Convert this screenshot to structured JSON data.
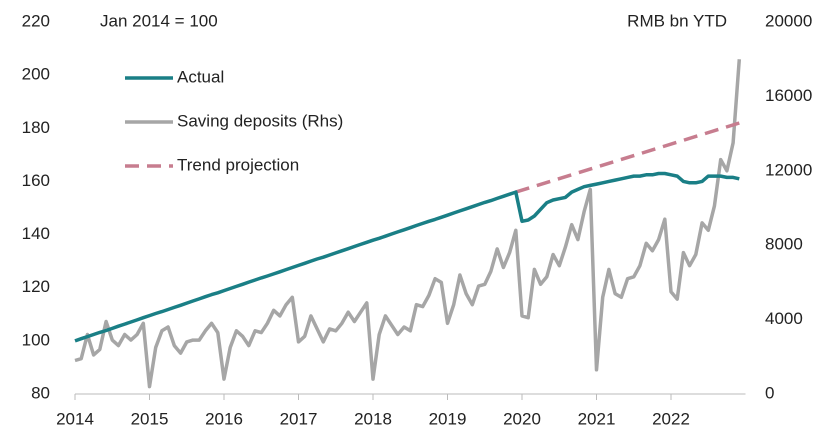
{
  "chart_data": {
    "type": "line",
    "annotations": [
      "Jan 2014 = 100",
      "RMB bn YTD"
    ],
    "x": [
      2014.0,
      2014.083,
      2014.167,
      2014.25,
      2014.333,
      2014.417,
      2014.5,
      2014.583,
      2014.667,
      2014.75,
      2014.833,
      2014.917,
      2015.0,
      2015.083,
      2015.167,
      2015.25,
      2015.333,
      2015.417,
      2015.5,
      2015.583,
      2015.667,
      2015.75,
      2015.833,
      2015.917,
      2016.0,
      2016.083,
      2016.167,
      2016.25,
      2016.333,
      2016.417,
      2016.5,
      2016.583,
      2016.667,
      2016.75,
      2016.833,
      2016.917,
      2017.0,
      2017.083,
      2017.167,
      2017.25,
      2017.333,
      2017.417,
      2017.5,
      2017.583,
      2017.667,
      2017.75,
      2017.833,
      2017.917,
      2018.0,
      2018.083,
      2018.167,
      2018.25,
      2018.333,
      2018.417,
      2018.5,
      2018.583,
      2018.667,
      2018.75,
      2018.833,
      2018.917,
      2019.0,
      2019.083,
      2019.167,
      2019.25,
      2019.333,
      2019.417,
      2019.5,
      2019.583,
      2019.667,
      2019.75,
      2019.833,
      2019.917,
      2020.0,
      2020.083,
      2020.167,
      2020.25,
      2020.333,
      2020.417,
      2020.5,
      2020.583,
      2020.667,
      2020.75,
      2020.833,
      2020.917,
      2021.0,
      2021.083,
      2021.167,
      2021.25,
      2021.333,
      2021.417,
      2021.5,
      2021.583,
      2021.667,
      2021.75,
      2021.833,
      2021.917,
      2022.0,
      2022.083,
      2022.167,
      2022.25,
      2022.333,
      2022.417,
      2022.5,
      2022.583,
      2022.667,
      2022.75,
      2022.833,
      2022.917
    ],
    "series": [
      {
        "name": "Actual",
        "color": "#1a7f86",
        "values": [
          100,
          100.8,
          101.6,
          102.4,
          103.2,
          103.9,
          104.7,
          105.5,
          106.3,
          107.1,
          107.9,
          108.7,
          109.5,
          110.3,
          111.0,
          111.8,
          112.6,
          113.4,
          114.2,
          115.0,
          115.8,
          116.6,
          117.4,
          118.1,
          118.9,
          119.7,
          120.5,
          121.3,
          122.1,
          122.9,
          123.7,
          124.4,
          125.2,
          126.0,
          126.8,
          127.6,
          128.4,
          129.2,
          130.0,
          130.8,
          131.5,
          132.3,
          133.1,
          133.9,
          134.7,
          135.5,
          136.3,
          137.1,
          137.9,
          138.6,
          139.4,
          140.2,
          141.0,
          141.8,
          142.6,
          143.4,
          144.2,
          145.0,
          145.7,
          146.5,
          147.3,
          148.1,
          148.9,
          149.7,
          150.5,
          151.3,
          152.1,
          152.8,
          153.6,
          154.4,
          155.2,
          156.0,
          145,
          145.5,
          147,
          149.5,
          152,
          153,
          153.5,
          154,
          156,
          157,
          158,
          158.5,
          159,
          159.5,
          160,
          160.5,
          161,
          161.5,
          162,
          162,
          162.5,
          162.5,
          163,
          163,
          162.5,
          162,
          160,
          159.5,
          159.5,
          160,
          162,
          162,
          162,
          161.5,
          161.5,
          161
        ]
      },
      {
        "name": "Saving deposits (Rhs)",
        "color": "#a6a6a6",
        "axis": "y2",
        "values": [
          1800,
          1900,
          3200,
          2100,
          2400,
          3900,
          2900,
          2600,
          3200,
          2900,
          3200,
          3800,
          400,
          2500,
          3400,
          3600,
          2600,
          2200,
          2800,
          2900,
          2900,
          3400,
          3800,
          3300,
          800,
          2500,
          3400,
          3100,
          2600,
          3400,
          3300,
          3800,
          4500,
          4200,
          4800,
          5200,
          2800,
          3100,
          4200,
          3500,
          2800,
          3500,
          3400,
          3800,
          4400,
          3900,
          4400,
          4900,
          800,
          3200,
          4200,
          3700,
          3200,
          3600,
          3400,
          4800,
          4700,
          5300,
          6200,
          6000,
          3800,
          4800,
          6400,
          5400,
          4800,
          5800,
          5900,
          6600,
          7800,
          6800,
          7600,
          8800,
          4200,
          4100,
          6700,
          5900,
          6300,
          7500,
          6900,
          7900,
          9100,
          8300,
          9800,
          11000,
          1300,
          5200,
          6700,
          5400,
          5200,
          6200,
          6300,
          6900,
          8100,
          7700,
          8300,
          9400,
          5500,
          5100,
          7600,
          6900,
          7500,
          9200,
          8800,
          10100,
          12600,
          12000,
          13500,
          18000
        ]
      },
      {
        "name": "Trend projection",
        "color": "#c77d8f",
        "dashed": true,
        "x": [
          2019.917,
          2022.917
        ],
        "values": [
          156,
          182
        ]
      }
    ],
    "xlim": [
      2014,
      2023
    ],
    "xticks": [
      2014,
      2015,
      2016,
      2017,
      2018,
      2019,
      2020,
      2021,
      2022
    ],
    "ylim": [
      80,
      220
    ],
    "yticks": [
      80,
      100,
      120,
      140,
      160,
      180,
      200,
      220
    ],
    "y2lim": [
      0,
      20000
    ],
    "y2ticks": [
      0,
      4000,
      8000,
      12000,
      16000,
      20000
    ],
    "legend": "upper left",
    "grid": false
  }
}
